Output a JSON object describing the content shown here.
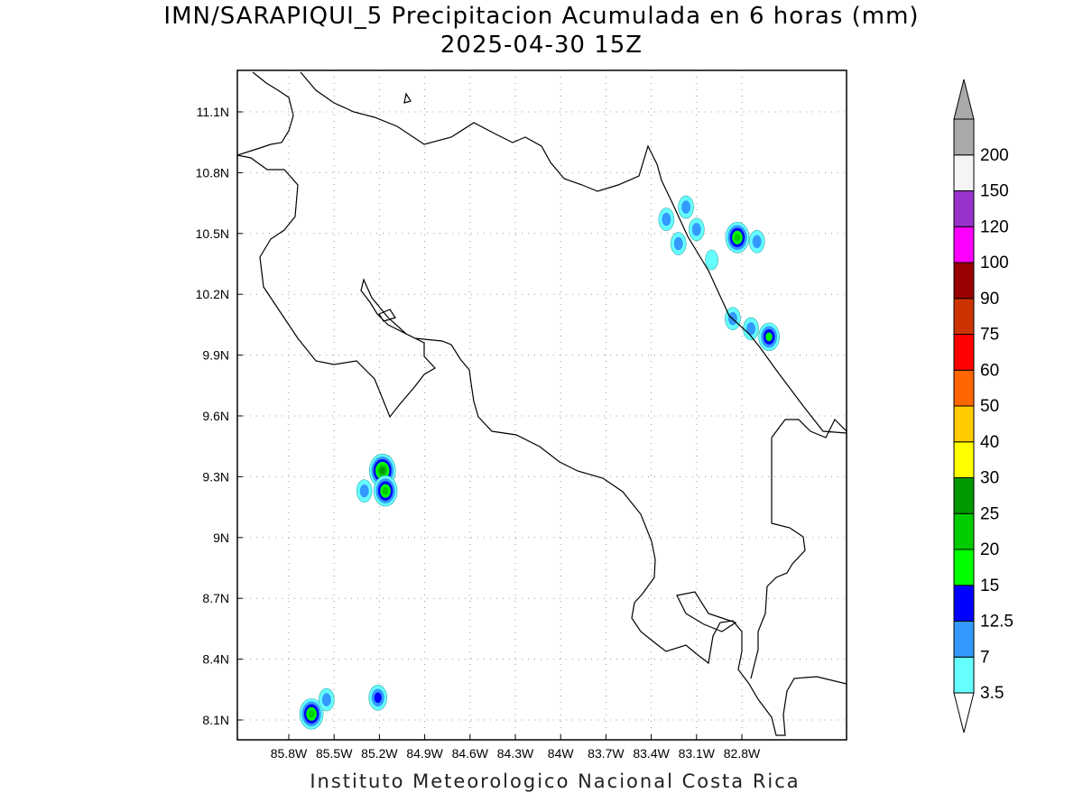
{
  "header": {
    "title": "IMN/SARAPIQUI_5 Precipitacion Acumulada en 6 horas (mm)",
    "subtitle": "2025-04-30 15Z"
  },
  "footer": {
    "credit": "Instituto Meteorologico Nacional Costa Rica"
  },
  "map": {
    "lon_ticks": [
      "85.8W",
      "85.5W",
      "85.2W",
      "84.9W",
      "84.6W",
      "84.3W",
      "84W",
      "83.7W",
      "83.4W",
      "83.1W",
      "82.8W"
    ],
    "lat_ticks": [
      "11.1N",
      "10.8N",
      "10.5N",
      "10.2N",
      "9.9N",
      "9.6N",
      "9.3N",
      "9N",
      "8.7N",
      "8.4N",
      "8.1N"
    ],
    "lon_values": [
      -85.8,
      -85.5,
      -85.2,
      -84.9,
      -84.6,
      -84.3,
      -84.0,
      -83.7,
      -83.4,
      -83.1,
      -82.8
    ],
    "lat_values": [
      11.1,
      10.8,
      10.5,
      10.2,
      9.9,
      9.6,
      9.3,
      9.0,
      8.7,
      8.4,
      8.1
    ],
    "grid": "dotted",
    "coastline_color": "#000000"
  },
  "colorbar": {
    "levels": [
      "3.5",
      "7",
      "12.5",
      "15",
      "20",
      "25",
      "30",
      "40",
      "50",
      "60",
      "75",
      "90",
      "100",
      "120",
      "150",
      "200"
    ],
    "colors": [
      "#66ffff",
      "#3399ff",
      "#0000ff",
      "#00ff00",
      "#00cc00",
      "#009900",
      "#ffff00",
      "#ffcc00",
      "#ff6600",
      "#ff0000",
      "#cc3300",
      "#990000",
      "#ff00ff",
      "#9933cc",
      "#f5f5f5",
      "#aaaaaa"
    ],
    "arrow_top_color": "#aaaaaa",
    "arrow_bottom_color": "#ffffff"
  },
  "precip_cells": [
    {
      "lon": -83.17,
      "lat": 10.63,
      "level": "7"
    },
    {
      "lon": -83.3,
      "lat": 10.57,
      "level": "7"
    },
    {
      "lon": -83.1,
      "lat": 10.52,
      "level": "7"
    },
    {
      "lon": -83.22,
      "lat": 10.45,
      "level": "7"
    },
    {
      "lon": -82.83,
      "lat": 10.48,
      "level": "20"
    },
    {
      "lon": -82.7,
      "lat": 10.46,
      "level": "7"
    },
    {
      "lon": -83.0,
      "lat": 10.37,
      "level": "3.5"
    },
    {
      "lon": -82.86,
      "lat": 10.08,
      "level": "7"
    },
    {
      "lon": -82.74,
      "lat": 10.03,
      "level": "7"
    },
    {
      "lon": -82.62,
      "lat": 9.99,
      "level": "15"
    },
    {
      "lon": -85.18,
      "lat": 9.33,
      "level": "25"
    },
    {
      "lon": -85.3,
      "lat": 9.23,
      "level": "7"
    },
    {
      "lon": -85.16,
      "lat": 9.23,
      "level": "20"
    },
    {
      "lon": -85.65,
      "lat": 8.13,
      "level": "20"
    },
    {
      "lon": -85.55,
      "lat": 8.2,
      "level": "7"
    },
    {
      "lon": -85.21,
      "lat": 8.21,
      "level": "12.5"
    }
  ]
}
